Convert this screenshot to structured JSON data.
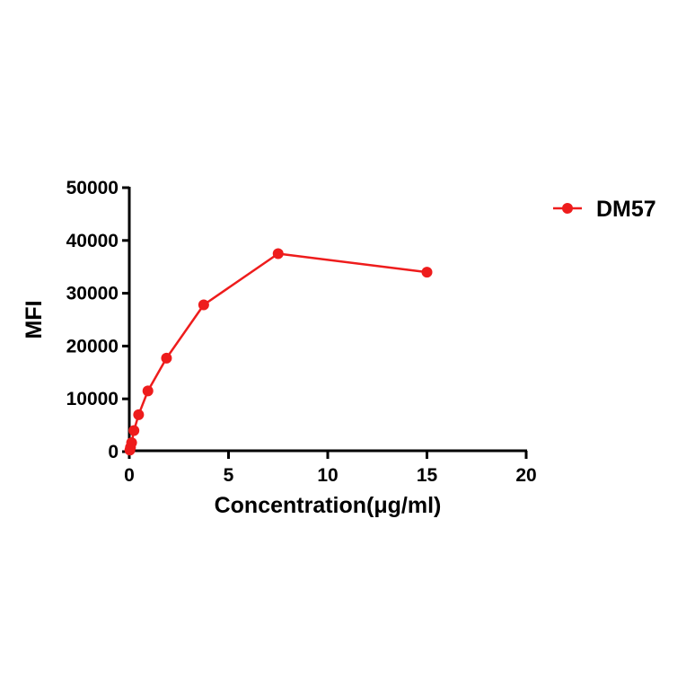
{
  "chart_data": {
    "type": "line",
    "title": "",
    "xlabel": "Concentration(μg/ml)",
    "ylabel": "MFI",
    "xlim": [
      0,
      20
    ],
    "ylim": [
      0,
      50000
    ],
    "xticks": [
      0,
      5,
      10,
      15,
      20
    ],
    "yticks": [
      0,
      10000,
      20000,
      30000,
      40000,
      50000
    ],
    "xtick_labels": [
      "0",
      "5",
      "10",
      "15",
      "20"
    ],
    "ytick_labels": [
      "0",
      "10000",
      "20000",
      "30000",
      "40000",
      "50000"
    ],
    "grid": false,
    "legend_position": "top-right-outside",
    "series": [
      {
        "name": "DM57",
        "color": "#ee1c1c",
        "marker": "circle",
        "x": [
          0.029,
          0.059,
          0.117,
          0.234,
          0.469,
          0.9375,
          1.875,
          3.75,
          7.5,
          15
        ],
        "values": [
          300,
          800,
          1700,
          4000,
          7000,
          11500,
          17700,
          27800,
          37500,
          34000
        ]
      }
    ]
  }
}
